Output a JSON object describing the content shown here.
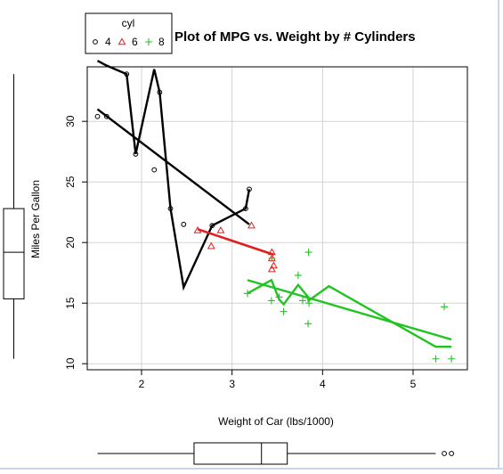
{
  "chart_data": {
    "type": "scatter",
    "title": "Plot of MPG vs. Weight by # Cylinders",
    "xlabel": "Weight of Car (lbs/1000)",
    "ylabel": "Miles Per Gallon",
    "xlim": [
      1.4,
      5.6
    ],
    "ylim": [
      9.5,
      34.5
    ],
    "x_ticks": [
      "2",
      "3",
      "4",
      "5"
    ],
    "y_ticks": [
      "10",
      "15",
      "20",
      "25",
      "30"
    ],
    "grid": true,
    "legend": {
      "title": "cyl",
      "position": "top-left",
      "entries": [
        {
          "label": "4",
          "symbol": "circle",
          "color": "#000000"
        },
        {
          "label": "6",
          "symbol": "triangle",
          "color": "#df2020"
        },
        {
          "label": "8",
          "symbol": "plus",
          "color": "#22c322"
        }
      ]
    },
    "series": [
      {
        "name": "4",
        "color": "#000000",
        "symbol": "circle",
        "points": [
          [
            1.513,
            30.4
          ],
          [
            1.615,
            30.4
          ],
          [
            1.835,
            33.9
          ],
          [
            1.935,
            27.3
          ],
          [
            2.14,
            26.0
          ],
          [
            2.2,
            32.4
          ],
          [
            2.32,
            22.8
          ],
          [
            2.465,
            21.5
          ],
          [
            2.78,
            21.4
          ],
          [
            3.15,
            22.8
          ],
          [
            3.19,
            24.4
          ]
        ],
        "fit_line": [
          [
            1.513,
            31.0
          ],
          [
            3.19,
            21.5
          ]
        ],
        "smooth_line": [
          [
            1.513,
            35.0
          ],
          [
            1.615,
            34.6
          ],
          [
            1.835,
            33.9
          ],
          [
            1.935,
            27.3
          ],
          [
            2.14,
            34.3
          ],
          [
            2.2,
            32.4
          ],
          [
            2.32,
            22.8
          ],
          [
            2.465,
            16.3
          ],
          [
            2.78,
            21.4
          ],
          [
            3.15,
            22.8
          ],
          [
            3.19,
            24.4
          ]
        ]
      },
      {
        "name": "6",
        "color": "#df2020",
        "symbol": "triangle",
        "points": [
          [
            2.62,
            21.0
          ],
          [
            2.77,
            19.7
          ],
          [
            2.875,
            21.0
          ],
          [
            3.215,
            21.4
          ],
          [
            3.44,
            18.7
          ],
          [
            3.44,
            19.2
          ],
          [
            3.46,
            18.1
          ],
          [
            3.44,
            17.8
          ]
        ],
        "fit_line": [
          [
            2.62,
            21.1
          ],
          [
            3.46,
            19.0
          ]
        ],
        "smooth_line": [
          [
            2.62,
            21.1
          ],
          [
            3.46,
            19.0
          ]
        ]
      },
      {
        "name": "8",
        "color": "#22c322",
        "symbol": "plus",
        "points": [
          [
            3.17,
            15.8
          ],
          [
            3.435,
            15.2
          ],
          [
            3.44,
            18.7
          ],
          [
            3.52,
            15.5
          ],
          [
            3.57,
            14.3
          ],
          [
            3.73,
            17.3
          ],
          [
            3.78,
            15.2
          ],
          [
            3.84,
            13.3
          ],
          [
            3.845,
            19.2
          ],
          [
            3.85,
            15.0
          ],
          [
            5.25,
            10.4
          ],
          [
            5.345,
            14.7
          ],
          [
            5.424,
            10.4
          ]
        ],
        "fit_line": [
          [
            3.17,
            16.9
          ],
          [
            5.424,
            12.0
          ]
        ],
        "smooth_line": [
          [
            3.17,
            15.8
          ],
          [
            3.435,
            16.9
          ],
          [
            3.52,
            15.3
          ],
          [
            3.57,
            14.9
          ],
          [
            3.73,
            16.5
          ],
          [
            3.84,
            15.5
          ],
          [
            3.845,
            15.2
          ],
          [
            4.07,
            16.4
          ],
          [
            5.25,
            11.4
          ],
          [
            5.424,
            11.4
          ]
        ]
      }
    ],
    "x_marginal_boxplot": {
      "whisker_low": 1.513,
      "q1": 2.58,
      "median": 3.325,
      "q3": 3.61,
      "whisker_high": 5.25,
      "outliers": [
        5.345,
        5.424
      ]
    },
    "y_marginal_boxplot": {
      "whisker_low": 10.4,
      "q1": 15.35,
      "median": 19.2,
      "q3": 22.8,
      "whisker_high": 33.9,
      "outliers": []
    }
  }
}
